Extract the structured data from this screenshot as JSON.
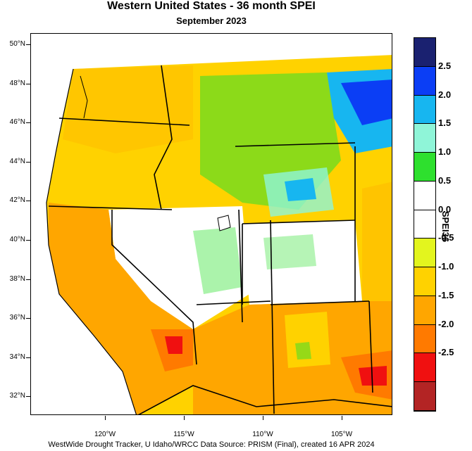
{
  "title": "Western United States - 36 month SPEI",
  "subtitle": "September 2023",
  "footer": "WestWide Drought Tracker, U Idaho/WRCC Data Source: PRISM (Final), created 16 APR 2024",
  "colorbar": {
    "title": "SPEI36",
    "tick_labels": [
      "2.5",
      "2.0",
      "1.5",
      "1.0",
      "0.5",
      "0.0",
      "-0.5",
      "-1.0",
      "-1.5",
      "-2.0",
      "-2.5"
    ],
    "colors": [
      "#1a2170",
      "#0b3ef5",
      "#17b6f0",
      "#8ff5d8",
      "#2ee02e",
      "#ffffff",
      "#ffffff",
      "#e3f51e",
      "#ffd200",
      "#ffa600",
      "#ff7a00",
      "#f01010",
      "#b32424"
    ]
  },
  "axes": {
    "lat_labels": [
      "50°N",
      "48°N",
      "46°N",
      "44°N",
      "42°N",
      "40°N",
      "38°N",
      "36°N",
      "34°N",
      "32°N"
    ],
    "lon_labels": [
      "120°W",
      "115°W",
      "110°W",
      "105°W"
    ]
  },
  "map_regions": [
    {
      "name": "northern-rockies-wet",
      "color": "#2ee02e"
    },
    {
      "name": "montana-east-very-wet",
      "color": "#0b3ef5"
    },
    {
      "name": "southwest-dry",
      "color": "#ffa600"
    },
    {
      "name": "california-dry",
      "color": "#ff7a00"
    }
  ]
}
